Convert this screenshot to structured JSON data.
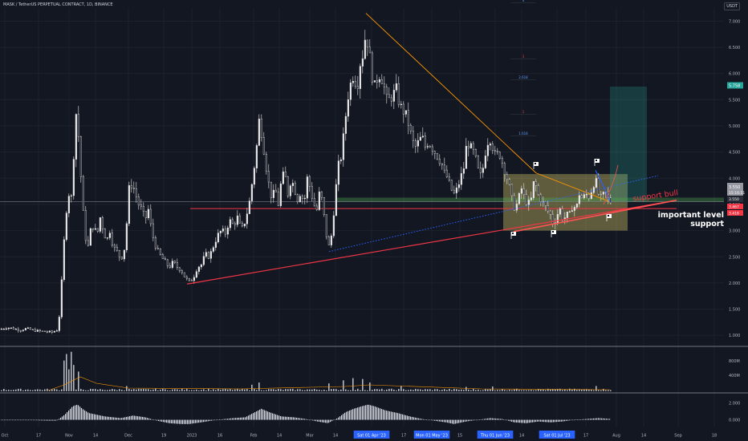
{
  "symbol_title": "MASK / TetherUS PERPETUAL CONTRACT, 1D, BINANCE",
  "currency": "USDT",
  "colors": {
    "background": "#131722",
    "candle": "#e6e6e6",
    "grid": "#1e222d",
    "resistance_line": "#ff9800",
    "support_line": "#f23645",
    "dotted_line": "#2962ff",
    "zone_fill": "#fff176",
    "target_fill": "#26a69a",
    "current_price_bg": "#9598a1",
    "price_badge_bg": "#f23645",
    "date_badge_bg": "#2962ff",
    "text": "#b2b5be"
  },
  "annotations": {
    "support_bull": "support  bull",
    "important_level": "important level",
    "support": "support"
  },
  "fib_labels": [
    "4",
    "3",
    "2.618",
    "1",
    "1.618"
  ],
  "price_badges": {
    "target": "5.758",
    "current": "3.550",
    "countdown": "15:16:51",
    "level1": "3.467",
    "level2": "3.416",
    "last": "3.550"
  },
  "chart_data": {
    "type": "candlestick",
    "title": "MASK / TetherUS PERPETUAL CONTRACT, 1D, BINANCE",
    "x_ticks": [
      "Oct",
      "17",
      "Nov",
      "14",
      "Dec",
      "19",
      "2023",
      "16",
      "Feb",
      "14",
      "Mar",
      "14",
      "Sat 01 Apr '23",
      "17",
      "Mon 01 May '23",
      "15",
      "Thu 01 Jun '23",
      "14",
      "Sat 01 Jul '23",
      "17",
      "Aug",
      "14",
      "Sep",
      "18"
    ],
    "y_ticks": [
      7.0,
      6.5,
      6.0,
      5.5,
      5.0,
      4.5,
      4.0,
      3.5,
      3.0,
      2.5,
      2.0,
      1.5,
      1.0
    ],
    "ylim": [
      0.82,
      7.25
    ],
    "close_path": [
      [
        0,
        1.12
      ],
      [
        8,
        1.15
      ],
      [
        16,
        1.13
      ],
      [
        24,
        1.1
      ],
      [
        32,
        1.13
      ],
      [
        40,
        1.1
      ],
      [
        48,
        1.08
      ],
      [
        56,
        1.07
      ],
      [
        64,
        1.06
      ],
      [
        70,
        1.1
      ],
      [
        74,
        1.45
      ],
      [
        78,
        2.6
      ],
      [
        82,
        3.4
      ],
      [
        86,
        3.8
      ],
      [
        89,
        3.55
      ],
      [
        92,
        4.9
      ],
      [
        95,
        5.4
      ],
      [
        98,
        4.5
      ],
      [
        101,
        3.8
      ],
      [
        104,
        3.1
      ],
      [
        108,
        2.6
      ],
      [
        112,
        3.0
      ],
      [
        116,
        3.1
      ],
      [
        120,
        2.9
      ],
      [
        124,
        3.25
      ],
      [
        128,
        3.0
      ],
      [
        132,
        2.8
      ],
      [
        136,
        3.0
      ],
      [
        140,
        2.7
      ],
      [
        145,
        2.6
      ],
      [
        150,
        2.45
      ],
      [
        155,
        2.7
      ],
      [
        160,
        3.8
      ],
      [
        164,
        3.9
      ],
      [
        168,
        3.7
      ],
      [
        172,
        3.5
      ],
      [
        176,
        3.4
      ],
      [
        180,
        3.2
      ],
      [
        184,
        3.4
      ],
      [
        188,
        3.0
      ],
      [
        192,
        2.75
      ],
      [
        196,
        2.6
      ],
      [
        200,
        2.5
      ],
      [
        205,
        2.4
      ],
      [
        210,
        2.3
      ],
      [
        215,
        2.4
      ],
      [
        220,
        2.3
      ],
      [
        225,
        2.25
      ],
      [
        230,
        2.1
      ],
      [
        235,
        2.02
      ],
      [
        240,
        2.1
      ],
      [
        245,
        2.3
      ],
      [
        250,
        2.35
      ],
      [
        255,
        2.55
      ],
      [
        260,
        2.5
      ],
      [
        265,
        2.7
      ],
      [
        270,
        2.9
      ],
      [
        275,
        3.0
      ],
      [
        280,
        2.95
      ],
      [
        285,
        3.2
      ],
      [
        290,
        3.1
      ],
      [
        295,
        3.25
      ],
      [
        300,
        3.0
      ],
      [
        305,
        3.2
      ],
      [
        310,
        3.55
      ],
      [
        314,
        4.0
      ],
      [
        318,
        4.45
      ],
      [
        322,
        5.1
      ],
      [
        326,
        4.8
      ],
      [
        330,
        4.3
      ],
      [
        334,
        3.9
      ],
      [
        338,
        3.6
      ],
      [
        342,
        3.8
      ],
      [
        346,
        3.5
      ],
      [
        350,
        4.0
      ],
      [
        354,
        4.1
      ],
      [
        358,
        3.7
      ],
      [
        362,
        4.0
      ],
      [
        366,
        3.8
      ],
      [
        370,
        3.6
      ],
      [
        374,
        3.75
      ],
      [
        378,
        3.5
      ],
      [
        382,
        4.0
      ],
      [
        386,
        3.8
      ],
      [
        390,
        3.5
      ],
      [
        394,
        3.4
      ],
      [
        398,
        3.8
      ],
      [
        402,
        3.4
      ],
      [
        406,
        2.9
      ],
      [
        409,
        2.7
      ],
      [
        412,
        2.9
      ],
      [
        416,
        3.5
      ],
      [
        420,
        4.2
      ],
      [
        424,
        4.4
      ],
      [
        428,
        4.9
      ],
      [
        432,
        5.5
      ],
      [
        436,
        5.8
      ],
      [
        440,
        6.0
      ],
      [
        444,
        5.7
      ],
      [
        448,
        6.2
      ],
      [
        452,
        6.4
      ],
      [
        455,
        6.8
      ],
      [
        458,
        6.5
      ],
      [
        461,
        6.2
      ],
      [
        465,
        5.7
      ],
      [
        469,
        5.9
      ],
      [
        473,
        6.0
      ],
      [
        477,
        5.8
      ],
      [
        481,
        5.5
      ],
      [
        485,
        5.5
      ],
      [
        489,
        5.6
      ],
      [
        493,
        5.7
      ],
      [
        497,
        5.4
      ],
      [
        501,
        5.3
      ],
      [
        505,
        5.2
      ],
      [
        509,
        5.0
      ],
      [
        513,
        4.7
      ],
      [
        517,
        4.6
      ],
      [
        521,
        4.7
      ],
      [
        525,
        4.8
      ],
      [
        529,
        4.6
      ],
      [
        533,
        4.7
      ],
      [
        537,
        4.6
      ],
      [
        541,
        4.5
      ],
      [
        545,
        4.4
      ],
      [
        549,
        4.3
      ],
      [
        553,
        4.1
      ],
      [
        557,
        4.0
      ],
      [
        561,
        3.8
      ],
      [
        565,
        3.7
      ],
      [
        569,
        3.8
      ],
      [
        573,
        4.0
      ],
      [
        577,
        4.2
      ],
      [
        581,
        4.7
      ],
      [
        585,
        4.6
      ],
      [
        589,
        4.5
      ],
      [
        593,
        4.3
      ],
      [
        597,
        4.0
      ],
      [
        601,
        4.2
      ],
      [
        605,
        4.6
      ],
      [
        609,
        4.8
      ],
      [
        613,
        4.6
      ],
      [
        617,
        4.4
      ],
      [
        621,
        4.5
      ],
      [
        625,
        4.3
      ],
      [
        629,
        4.1
      ],
      [
        633,
        3.9
      ],
      [
        637,
        3.6
      ],
      [
        641,
        3.4
      ],
      [
        645,
        3.6
      ],
      [
        649,
        3.8
      ],
      [
        653,
        3.6
      ],
      [
        657,
        3.5
      ],
      [
        661,
        3.6
      ],
      [
        665,
        4.0
      ],
      [
        669,
        3.7
      ],
      [
        673,
        3.6
      ],
      [
        677,
        3.5
      ],
      [
        681,
        3.4
      ],
      [
        685,
        3.3
      ],
      [
        689,
        3.1
      ],
      [
        693,
        3.3
      ],
      [
        697,
        3.4
      ],
      [
        701,
        3.2
      ],
      [
        705,
        3.3
      ],
      [
        709,
        3.3
      ],
      [
        713,
        3.5
      ],
      [
        717,
        3.4
      ],
      [
        721,
        3.7
      ],
      [
        725,
        3.6
      ],
      [
        729,
        3.7
      ],
      [
        733,
        3.65
      ],
      [
        737,
        3.8
      ],
      [
        741,
        4.0
      ],
      [
        745,
        3.7
      ],
      [
        749,
        3.6
      ],
      [
        753,
        3.75
      ],
      [
        757,
        3.6
      ],
      [
        760,
        3.55
      ]
    ],
    "volume_ylim": [
      0,
      950000
    ],
    "volume_ticks": [
      "800M",
      "400M"
    ],
    "volume_spikes": [
      [
        78,
        700000
      ],
      [
        82,
        850000
      ],
      [
        85,
        500000
      ],
      [
        88,
        900000
      ],
      [
        92,
        600000
      ],
      [
        96,
        450000
      ],
      [
        158,
        120000
      ],
      [
        312,
        150000
      ],
      [
        322,
        200000
      ],
      [
        410,
        180000
      ],
      [
        428,
        250000
      ],
      [
        440,
        300000
      ],
      [
        452,
        280000
      ],
      [
        460,
        200000
      ],
      [
        500,
        120000
      ],
      [
        580,
        100000
      ],
      [
        612,
        110000
      ],
      [
        742,
        120000
      ]
    ],
    "oscillator_ticks": [
      "2.000",
      "0.000"
    ],
    "oscillator_ylim": [
      -0.8,
      2.8
    ],
    "oscillator_path": [
      [
        0,
        -0.05
      ],
      [
        40,
        -0.05
      ],
      [
        60,
        -0.1
      ],
      [
        70,
        -0.1
      ],
      [
        80,
        0.6
      ],
      [
        90,
        1.6
      ],
      [
        96,
        1.8
      ],
      [
        102,
        1.3
      ],
      [
        110,
        0.8
      ],
      [
        120,
        0.6
      ],
      [
        130,
        0.4
      ],
      [
        150,
        0.2
      ],
      [
        165,
        0.5
      ],
      [
        180,
        0.3
      ],
      [
        195,
        -0.1
      ],
      [
        210,
        -0.4
      ],
      [
        225,
        -0.5
      ],
      [
        235,
        -0.5
      ],
      [
        250,
        -0.3
      ],
      [
        270,
        0.0
      ],
      [
        290,
        0.2
      ],
      [
        305,
        0.3
      ],
      [
        315,
        0.8
      ],
      [
        325,
        1.3
      ],
      [
        335,
        0.9
      ],
      [
        350,
        0.4
      ],
      [
        365,
        0.3
      ],
      [
        380,
        0.1
      ],
      [
        395,
        -0.2
      ],
      [
        408,
        -0.4
      ],
      [
        420,
        0.2
      ],
      [
        430,
        0.9
      ],
      [
        440,
        1.3
      ],
      [
        450,
        1.6
      ],
      [
        458,
        1.8
      ],
      [
        466,
        1.6
      ],
      [
        480,
        1.1
      ],
      [
        495,
        0.8
      ],
      [
        510,
        0.4
      ],
      [
        525,
        0.1
      ],
      [
        540,
        -0.1
      ],
      [
        555,
        -0.3
      ],
      [
        565,
        -0.5
      ],
      [
        580,
        -0.2
      ],
      [
        595,
        0.0
      ],
      [
        610,
        0.2
      ],
      [
        625,
        0.1
      ],
      [
        640,
        -0.3
      ],
      [
        655,
        -0.4
      ],
      [
        670,
        -0.2
      ],
      [
        685,
        -0.3
      ],
      [
        700,
        -0.2
      ],
      [
        715,
        0.0
      ],
      [
        730,
        0.1
      ],
      [
        745,
        0.2
      ],
      [
        760,
        0.1
      ]
    ]
  }
}
